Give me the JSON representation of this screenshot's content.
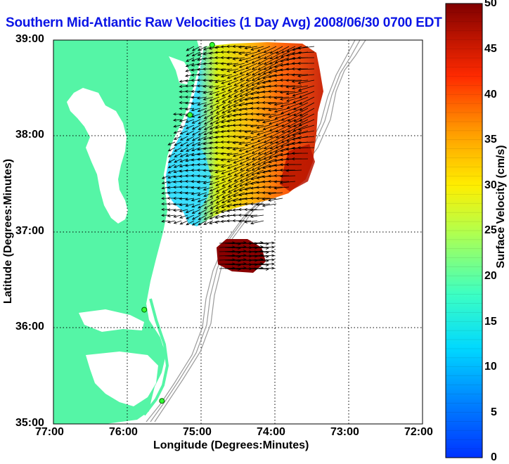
{
  "title": "Southern Mid-Atlantic Raw Velocities (1 Day Avg) 2008/06/30 0700 EDT",
  "map": {
    "longitude_label": "Longitude (Degrees:Minutes)",
    "latitude_label": "Latitude (Degrees:Minutes)",
    "lon_ticks": [
      "77:00",
      "76:00",
      "75:00",
      "74:00",
      "73:00",
      "72:00"
    ],
    "lat_ticks": [
      "39:00",
      "38:00",
      "37:00",
      "36:00",
      "35:00"
    ],
    "lon_range": [
      -77,
      -72
    ],
    "lat_range": [
      35,
      39
    ],
    "grid": "dotted",
    "land_color": "#55f5a6",
    "bathymetry_color": "#9a9a9a"
  },
  "colorbar": {
    "label": "Surface Velocity (cm/s)",
    "ticks": [
      "50",
      "45",
      "40",
      "35",
      "30",
      "25",
      "20",
      "15",
      "10",
      "5",
      "0"
    ],
    "range": [
      0,
      50
    ],
    "colormap": "jet"
  },
  "stations": [
    {
      "lon": -74.85,
      "lat": 38.95
    },
    {
      "lon": -75.15,
      "lat": 38.22
    },
    {
      "lon": -75.77,
      "lat": 36.19
    },
    {
      "lon": -75.53,
      "lat": 35.24
    }
  ]
}
